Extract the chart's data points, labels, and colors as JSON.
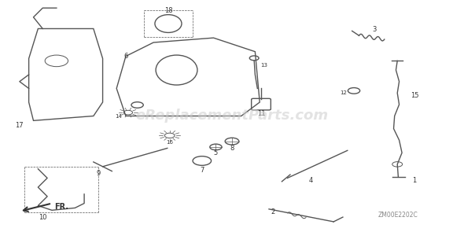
{
  "background_color": "#ffffff",
  "text_color": "#333333",
  "diagram_color": "#555555",
  "watermark": "eReplacementParts.com",
  "watermark_color": "#cccccc",
  "part_code": "ZM00E2202C",
  "fr_label": "FR.",
  "figsize": [
    5.9,
    2.95
  ],
  "dpi": 100
}
